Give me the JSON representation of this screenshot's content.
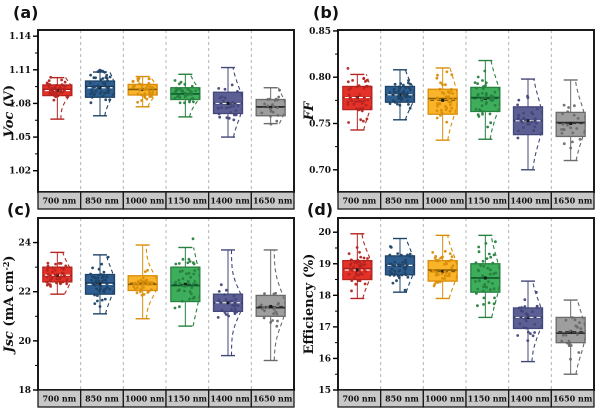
{
  "figure": {
    "background": "#ffffff",
    "panel_labels": [
      "(a)",
      "(b)",
      "(c)",
      "(d)"
    ]
  },
  "colors": {
    "strip_fill": "#c8c8c8",
    "plot_border": "#1a1a1a",
    "separator": "#b4b4b4",
    "series": [
      {
        "name": "700 nm",
        "fill": "#e53228",
        "stroke": "#b42520",
        "median": "#a81d1d",
        "mean_line": "#ffffff"
      },
      {
        "name": "850 nm",
        "fill": "#2f5f91",
        "stroke": "#1f4468",
        "median": "#16365a",
        "mean_line": "#ffffff"
      },
      {
        "name": "1000 nm",
        "fill": "#f9b42a",
        "stroke": "#d98e0b",
        "median": "#8a5c00",
        "mean_line": "#8a5c00"
      },
      {
        "name": "1150 nm",
        "fill": "#3eae5c",
        "stroke": "#27813f",
        "median": "#115c2e",
        "mean_line": "#115c2e"
      },
      {
        "name": "1400 nm",
        "fill": "#5b5f94",
        "stroke": "#43477a",
        "median": "#33365f",
        "mean_line": "#e9e9f6"
      },
      {
        "name": "1650 nm",
        "fill": "#9e9e9e",
        "stroke": "#6b6b6b",
        "median": "#2b2b2b",
        "mean_line": "#3a3a3a"
      }
    ]
  },
  "chart_data": [
    {
      "type": "box",
      "panel_label": "(a)",
      "ylabel": "Voc (V)",
      "ylabel_parts": [
        {
          "t": "Voc",
          "i": true
        },
        {
          "t": " (V)",
          "i": false
        }
      ],
      "ylim": [
        1.001,
        1.1455
      ],
      "yticks": [
        1.02,
        1.05,
        1.08,
        1.11,
        1.14
      ],
      "ytick_labels": [
        "1.02",
        "1.05",
        "1.08",
        "1.11",
        "1.14"
      ],
      "categories": [
        "700 nm",
        "850 nm",
        "1000 nm",
        "1150 nm",
        "1400 nm",
        "1650 nm"
      ],
      "grid": "dashed-vertical-separators",
      "legend": "none",
      "boxes": [
        {
          "low": 1.066,
          "q1": 1.087,
          "median": 1.0925,
          "q3": 1.0965,
          "high": 1.103,
          "mean": 1.0915,
          "n": 40
        },
        {
          "low": 1.069,
          "q1": 1.0855,
          "median": 1.095,
          "q3": 1.1,
          "high": 1.108,
          "mean": 1.094,
          "n": 44
        },
        {
          "low": 1.077,
          "q1": 1.0875,
          "median": 1.0925,
          "q3": 1.097,
          "high": 1.104,
          "mean": 1.0925,
          "n": 40
        },
        {
          "low": 1.068,
          "q1": 1.0835,
          "median": 1.0885,
          "q3": 1.094,
          "high": 1.106,
          "mean": 1.0885,
          "n": 40
        },
        {
          "low": 1.05,
          "q1": 1.071,
          "median": 1.08,
          "q3": 1.09,
          "high": 1.112,
          "mean": 1.08,
          "n": 26
        },
        {
          "low": 1.062,
          "q1": 1.069,
          "median": 1.077,
          "q3": 1.0835,
          "high": 1.094,
          "mean": 1.0765,
          "n": 20
        }
      ]
    },
    {
      "type": "box",
      "panel_label": "(b)",
      "ylabel": "FF",
      "ylabel_parts": [
        {
          "t": "FF",
          "i": true
        }
      ],
      "ylim": [
        0.676,
        0.851
      ],
      "yticks": [
        0.7,
        0.75,
        0.8,
        0.85
      ],
      "ytick_labels": [
        "0.70",
        "0.75",
        "0.80",
        "0.85"
      ],
      "categories": [
        "700 nm",
        "850 nm",
        "1000 nm",
        "1150 nm",
        "1400 nm",
        "1650 nm"
      ],
      "grid": "dashed-vertical-separators",
      "legend": "none",
      "boxes": [
        {
          "low": 0.743,
          "q1": 0.765,
          "median": 0.778,
          "q3": 0.79,
          "high": 0.803,
          "mean": 0.778,
          "n": 40
        },
        {
          "low": 0.754,
          "q1": 0.773,
          "median": 0.781,
          "q3": 0.79,
          "high": 0.808,
          "mean": 0.781,
          "n": 44
        },
        {
          "low": 0.732,
          "q1": 0.76,
          "median": 0.777,
          "q3": 0.787,
          "high": 0.81,
          "mean": 0.775,
          "n": 40
        },
        {
          "low": 0.733,
          "q1": 0.763,
          "median": 0.778,
          "q3": 0.789,
          "high": 0.818,
          "mean": 0.777,
          "n": 40
        },
        {
          "low": 0.7,
          "q1": 0.738,
          "median": 0.753,
          "q3": 0.768,
          "high": 0.798,
          "mean": 0.753,
          "n": 26
        },
        {
          "low": 0.71,
          "q1": 0.736,
          "median": 0.751,
          "q3": 0.762,
          "high": 0.797,
          "mean": 0.75,
          "n": 20
        }
      ]
    },
    {
      "type": "box",
      "panel_label": "(c)",
      "ylabel": "Jsc (mA cm⁻²)",
      "ylabel_parts": [
        {
          "t": "Jsc",
          "i": true
        },
        {
          "t": " (mA cm",
          "i": false
        },
        {
          "t": "-2",
          "i": false,
          "sup": true
        },
        {
          "t": ")",
          "i": false
        }
      ],
      "ylim": [
        18.0,
        25.0
      ],
      "yticks": [
        18,
        20,
        22,
        24
      ],
      "ytick_labels": [
        "18",
        "20",
        "22",
        "24"
      ],
      "categories": [
        "700 nm",
        "850 nm",
        "1000 nm",
        "1150 nm",
        "1400 nm",
        "1650 nm"
      ],
      "grid": "dashed-vertical-separators",
      "legend": "none",
      "boxes": [
        {
          "low": 21.9,
          "q1": 22.4,
          "median": 22.65,
          "q3": 23.0,
          "high": 23.6,
          "mean": 22.67,
          "n": 40
        },
        {
          "low": 21.1,
          "q1": 21.9,
          "median": 22.35,
          "q3": 22.7,
          "high": 23.5,
          "mean": 22.3,
          "n": 44
        },
        {
          "low": 20.9,
          "q1": 22.05,
          "median": 22.3,
          "q3": 22.65,
          "high": 23.9,
          "mean": 22.35,
          "n": 40
        },
        {
          "low": 20.6,
          "q1": 21.6,
          "median": 22.25,
          "q3": 23.0,
          "high": 23.8,
          "mean": 22.3,
          "n": 40
        },
        {
          "low": 19.4,
          "q1": 21.2,
          "median": 21.55,
          "q3": 21.9,
          "high": 23.7,
          "mean": 21.55,
          "n": 26
        },
        {
          "low": 19.2,
          "q1": 21.0,
          "median": 21.35,
          "q3": 21.85,
          "high": 23.7,
          "mean": 21.4,
          "n": 20
        }
      ]
    },
    {
      "type": "box",
      "panel_label": "(d)",
      "ylabel": "Efficiency (%)",
      "ylabel_parts": [
        {
          "t": "Efficiency (%)",
          "i": false
        }
      ],
      "ylim": [
        15.0,
        20.45
      ],
      "yticks": [
        15,
        16,
        17,
        18,
        19,
        20
      ],
      "ytick_labels": [
        "15",
        "16",
        "17",
        "18",
        "19",
        "20"
      ],
      "categories": [
        "700 nm",
        "850 nm",
        "1000 nm",
        "1150 nm",
        "1400 nm",
        "1650 nm"
      ],
      "grid": "dashed-vertical-separators",
      "legend": "none",
      "boxes": [
        {
          "low": 17.9,
          "q1": 18.5,
          "median": 18.85,
          "q3": 19.1,
          "high": 19.95,
          "mean": 18.8,
          "n": 40
        },
        {
          "low": 18.1,
          "q1": 18.65,
          "median": 18.95,
          "q3": 19.25,
          "high": 19.8,
          "mean": 18.95,
          "n": 44
        },
        {
          "low": 17.9,
          "q1": 18.45,
          "median": 18.8,
          "q3": 19.1,
          "high": 19.9,
          "mean": 18.75,
          "n": 40
        },
        {
          "low": 17.3,
          "q1": 18.1,
          "median": 18.55,
          "q3": 19.0,
          "high": 19.9,
          "mean": 18.55,
          "n": 40
        },
        {
          "low": 15.9,
          "q1": 16.95,
          "median": 17.3,
          "q3": 17.6,
          "high": 18.45,
          "mean": 17.3,
          "n": 26
        },
        {
          "low": 15.5,
          "q1": 16.5,
          "median": 16.8,
          "q3": 17.3,
          "high": 17.85,
          "mean": 16.85,
          "n": 20
        }
      ]
    }
  ]
}
